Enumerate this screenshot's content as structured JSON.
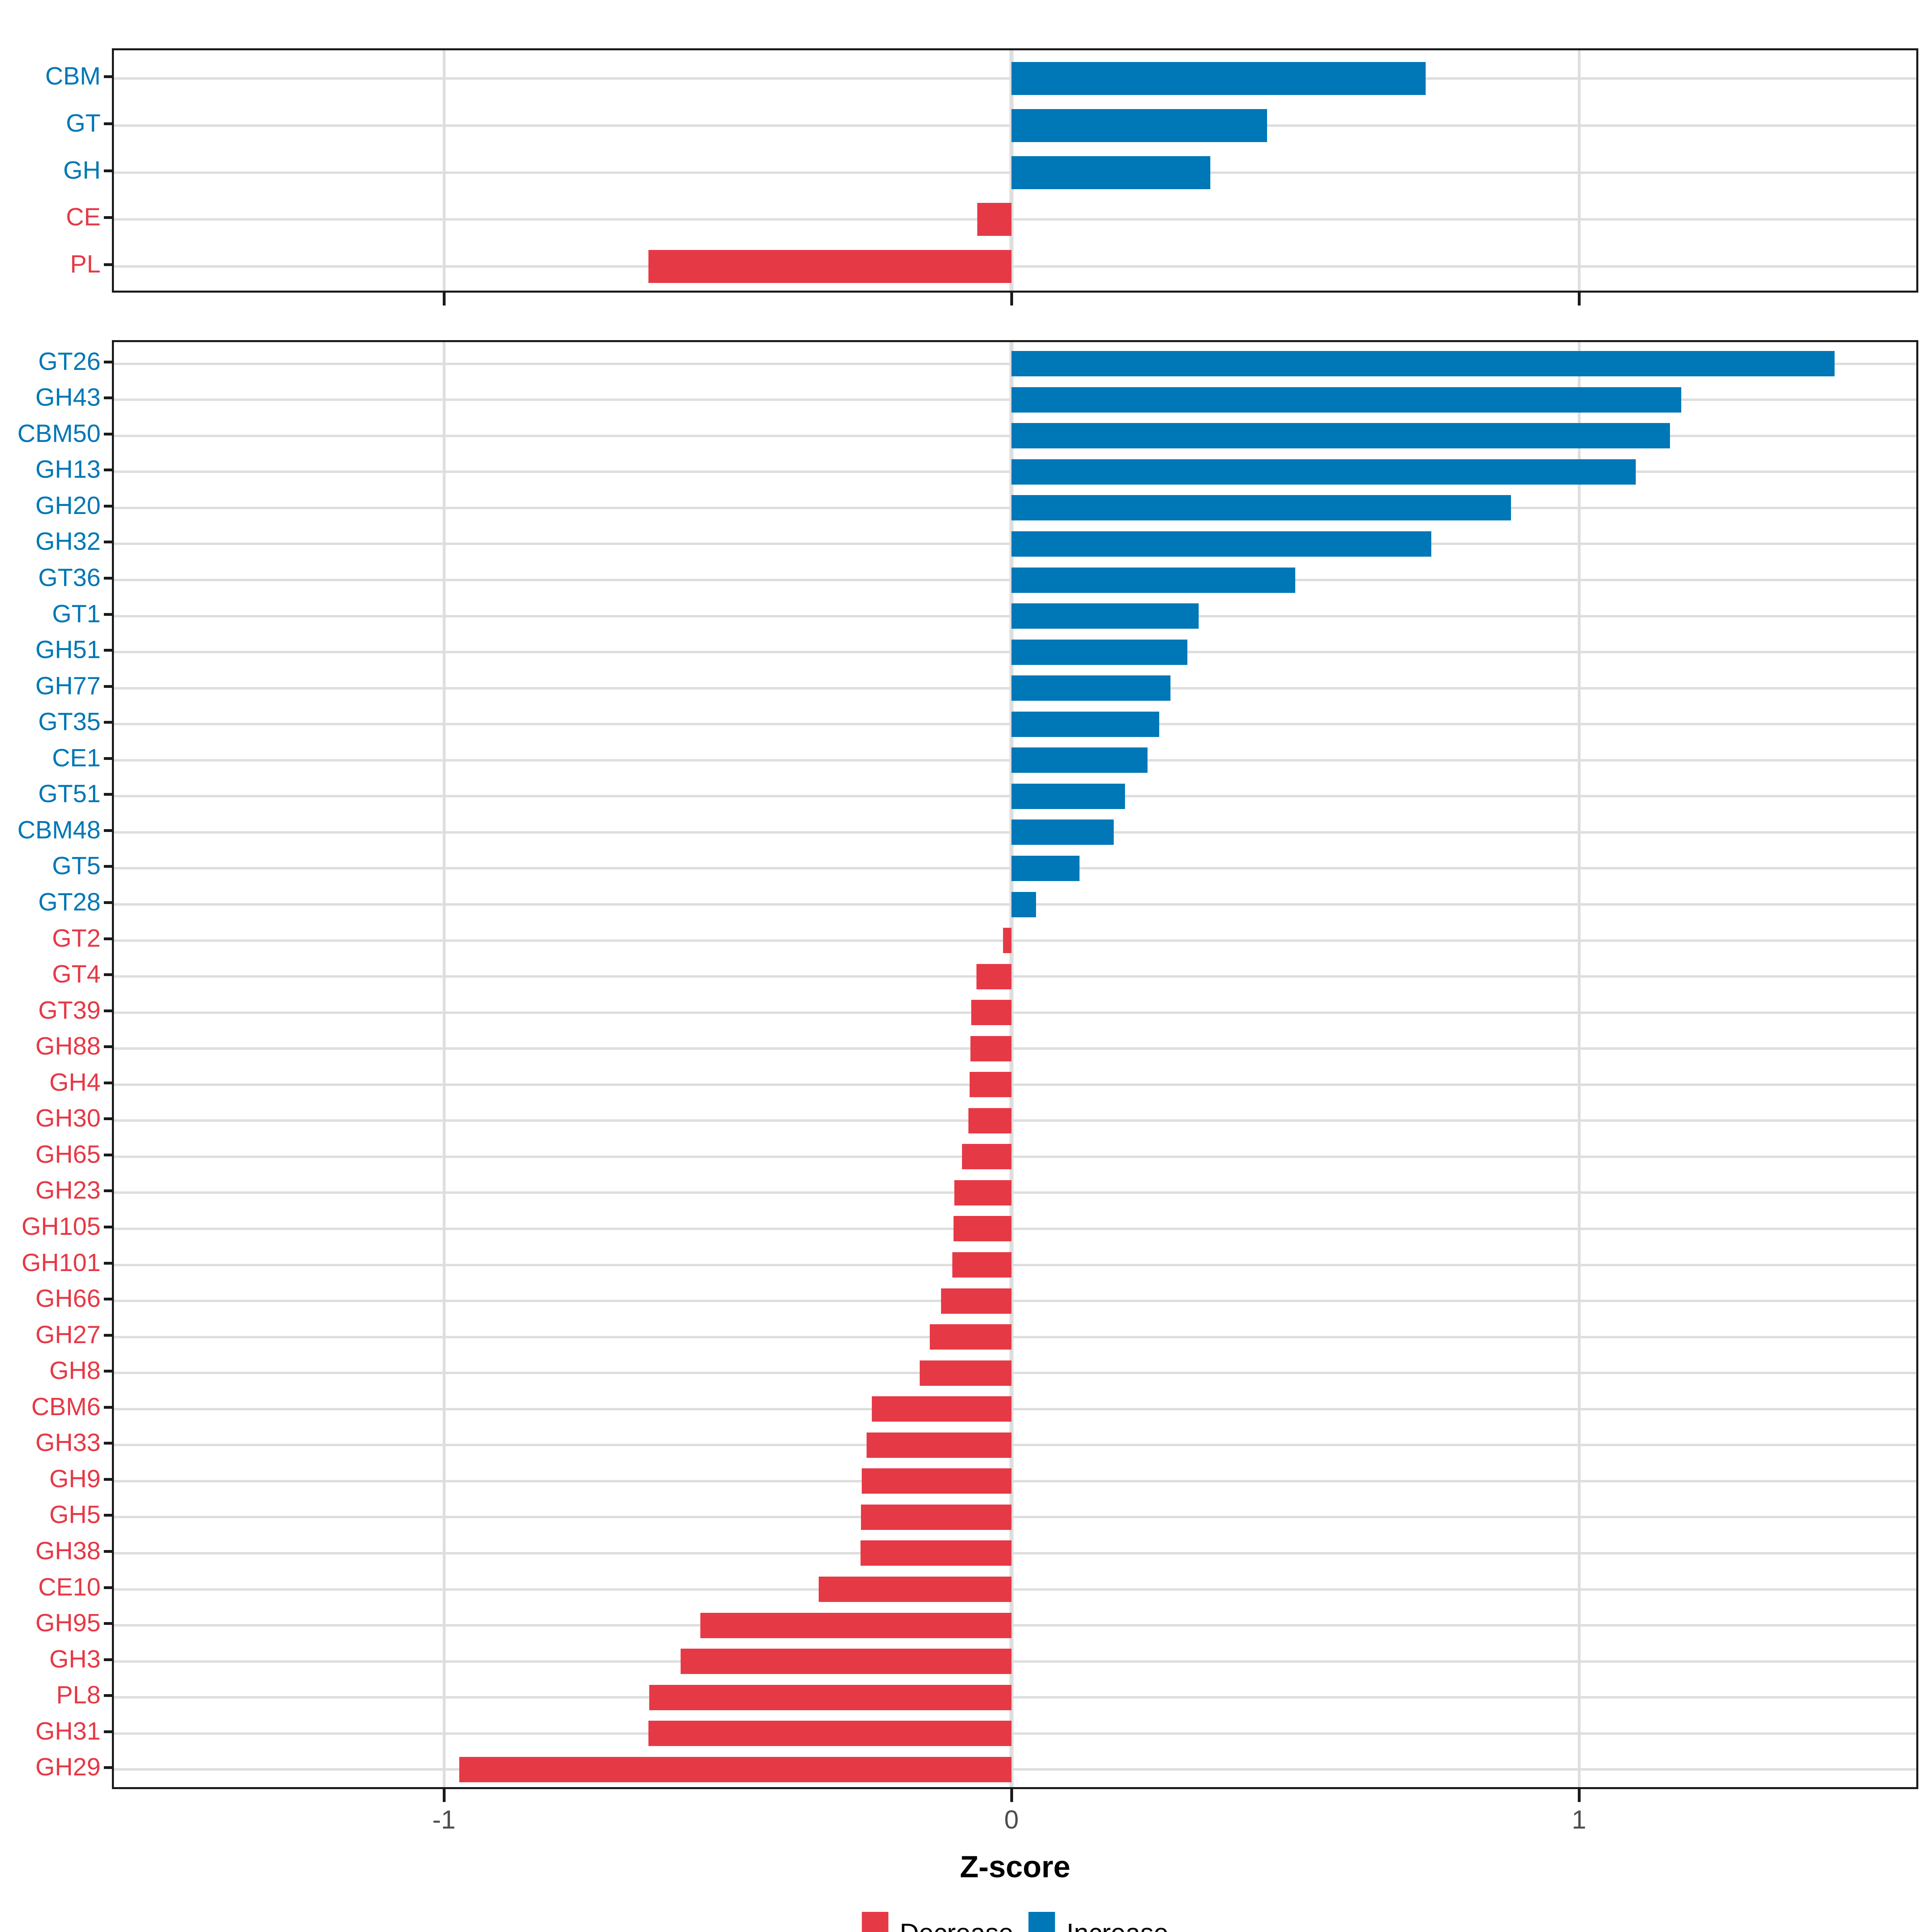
{
  "chart_data": {
    "type": "bar",
    "orientation": "horizontal",
    "title": "",
    "xlabel": "Z-score",
    "ylabel": "",
    "xlim": [
      -1.59,
      1.6
    ],
    "x_ticks": [
      {
        "value": -1,
        "label": "-1"
      },
      {
        "value": 0,
        "label": "0"
      },
      {
        "value": 1,
        "label": "1"
      }
    ],
    "grid": "major-only",
    "legend_position": "bottom",
    "panels": [
      {
        "name": "cazyme-class-panel",
        "categories": [
          "CBM",
          "GT",
          "GH",
          "CE",
          "PL"
        ],
        "values": [
          0.73,
          0.45,
          0.35,
          -0.06,
          -0.64
        ]
      },
      {
        "name": "cazyme-family-panel",
        "categories": [
          "GT26",
          "GH43",
          "CBM50",
          "GH13",
          "GH20",
          "GH32",
          "GT36",
          "GT1",
          "GH51",
          "GH77",
          "GT35",
          "CE1",
          "GT51",
          "CBM48",
          "GT5",
          "GT28",
          "GT2",
          "GT4",
          "GT39",
          "GH88",
          "GH4",
          "GH30",
          "GH65",
          "GH23",
          "GH105",
          "GH101",
          "GH66",
          "GH27",
          "GH8",
          "CBM6",
          "GH33",
          "GH9",
          "GH5",
          "GH38",
          "CE10",
          "GH95",
          "GH3",
          "PL8",
          "GH31",
          "GH29"
        ],
        "values": [
          1.45,
          1.18,
          1.16,
          1.1,
          0.88,
          0.74,
          0.5,
          0.33,
          0.31,
          0.28,
          0.26,
          0.24,
          0.2,
          0.18,
          0.12,
          0.043,
          -0.015,
          -0.062,
          -0.071,
          -0.072,
          -0.074,
          -0.076,
          -0.087,
          -0.101,
          -0.102,
          -0.104,
          -0.124,
          -0.144,
          -0.162,
          -0.246,
          -0.255,
          -0.264,
          -0.265,
          -0.266,
          -0.34,
          -0.548,
          -0.583,
          -0.638,
          -0.64,
          -0.973
        ]
      }
    ],
    "colors": {
      "increase": "#0077b6",
      "decrease": "#e63946",
      "grid": "#dedede",
      "axis_text": "#4d4d4d",
      "panel_border": "#1a1a1a"
    },
    "legend": [
      {
        "label": "Decrease",
        "color": "#e63946"
      },
      {
        "label": "Increase",
        "color": "#0077b6"
      }
    ]
  }
}
